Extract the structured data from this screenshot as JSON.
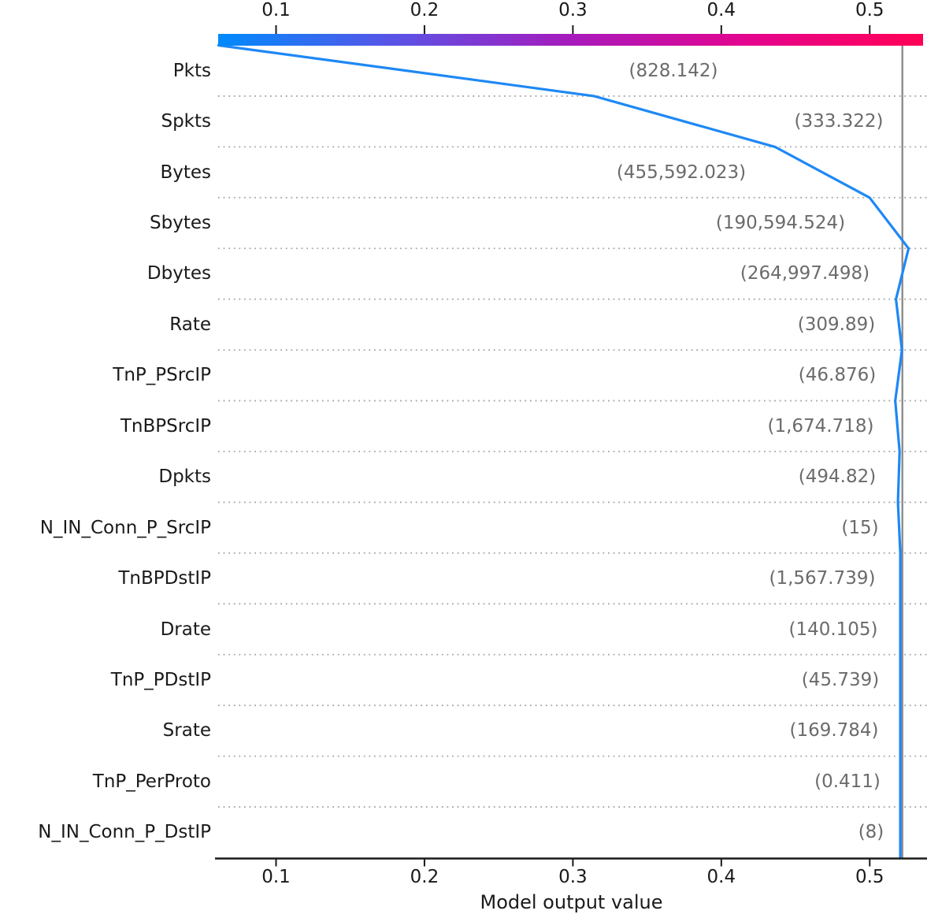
{
  "chart_data": {
    "type": "line",
    "subtype": "shap_decision_plot",
    "xlabel": "Model output value",
    "xlim": [
      0.061,
      0.537
    ],
    "x_ticks": [
      0.1,
      0.2,
      0.3,
      0.4,
      0.5
    ],
    "x_tick_labels": [
      "0.1",
      "0.2",
      "0.3",
      "0.4",
      "0.5"
    ],
    "top_axis": {
      "tick_labels": [
        "0.1",
        "0.2",
        "0.3",
        "0.4",
        "0.5"
      ]
    },
    "grid": "dotted horizontal separators between feature rows",
    "legend": "feature-value colorbar across the top",
    "base_value_line_x": 0.522,
    "features": [
      {
        "name": "Pkts",
        "value_label": "(828.142)",
        "value_label_cx": 855
      },
      {
        "name": "Spkts",
        "value_label": "(333.322)",
        "value_label_cx": 1065
      },
      {
        "name": "Bytes",
        "value_label": "(455,592.023)",
        "value_label_cx": 865
      },
      {
        "name": "Sbytes",
        "value_label": "(190,594.524)",
        "value_label_cx": 991
      },
      {
        "name": "Dbytes",
        "value_label": "(264,997.498)",
        "value_label_cx": 1022
      },
      {
        "name": "Rate",
        "value_label": "(309.89)",
        "value_label_cx": 1062
      },
      {
        "name": "TnP_PSrcIP",
        "value_label": "(46.876)",
        "value_label_cx": 1063
      },
      {
        "name": "TnBPSrcIP",
        "value_label": "(1,674.718)",
        "value_label_cx": 1042
      },
      {
        "name": "Dpkts",
        "value_label": "(494.82)",
        "value_label_cx": 1063
      },
      {
        "name": "N_IN_Conn_P_SrcIP",
        "value_label": "(15)",
        "value_label_cx": 1092
      },
      {
        "name": "TnBPDstIP",
        "value_label": "(1,567.739)",
        "value_label_cx": 1044
      },
      {
        "name": "Drate",
        "value_label": "(140.105)",
        "value_label_cx": 1058
      },
      {
        "name": "TnP_PDstIP",
        "value_label": "(45.739)",
        "value_label_cx": 1067
      },
      {
        "name": "Srate",
        "value_label": "(169.784)",
        "value_label_cx": 1059
      },
      {
        "name": "TnP_PerProto",
        "value_label": "(0.411)",
        "value_label_cx": 1076
      },
      {
        "name": "N_IN_Conn_P_DstIP",
        "value_label": "(8)",
        "value_label_cx": 1106
      }
    ],
    "line_x_at_row_boundaries_top_to_bottom": [
      0.0612,
      0.3142,
      0.4362,
      0.4999,
      0.5262,
      0.5177,
      0.5217,
      0.5172,
      0.5201,
      0.519,
      0.5206,
      0.5206,
      0.5206,
      0.5206,
      0.5206,
      0.5206,
      0.5206
    ],
    "colors": {
      "line": "#1e88f5",
      "base_value_line": "#8c8c8c",
      "value_text": "#6b6b6b",
      "feature_text": "#1a1a1a",
      "gridline": "#a6a6a6",
      "axis": "#1a1a1a",
      "colorbar_stops": [
        "#008afb",
        "#5a53e6",
        "#a71abc",
        "#e4058f",
        "#ff0055"
      ]
    }
  }
}
